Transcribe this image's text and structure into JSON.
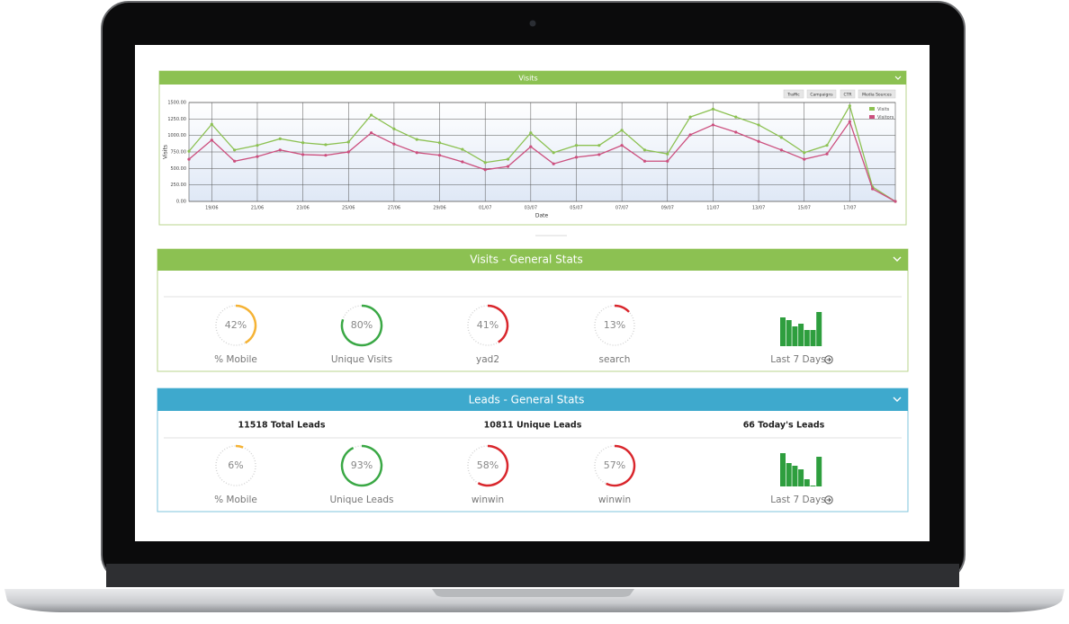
{
  "chart_data": {
    "type": "line",
    "title": "Visits",
    "x_label": "Date",
    "y_label": "Visits",
    "categories": [
      null,
      "19/06",
      null,
      "21/06",
      null,
      "23/06",
      null,
      "25/06",
      null,
      "27/06",
      null,
      "29/06",
      null,
      "01/07",
      null,
      "03/07",
      null,
      "05/07",
      null,
      "07/07",
      null,
      "09/07",
      null,
      "11/07",
      null,
      "13/07",
      null,
      "15/07",
      null,
      "17/07",
      null,
      null
    ],
    "series": [
      {
        "name": "Visits",
        "color": "#8cc152",
        "values": [
          760,
          1170,
          780,
          850,
          950,
          890,
          860,
          900,
          1310,
          1100,
          940,
          890,
          790,
          590,
          640,
          1040,
          740,
          850,
          850,
          1080,
          780,
          720,
          1280,
          1400,
          1280,
          1160,
          970,
          740,
          850,
          1450,
          220,
          0
        ]
      },
      {
        "name": "Visitors",
        "color": "#cc4f7e",
        "values": [
          640,
          930,
          610,
          680,
          780,
          710,
          700,
          750,
          1040,
          870,
          740,
          700,
          600,
          480,
          530,
          830,
          570,
          670,
          710,
          850,
          610,
          610,
          1010,
          1160,
          1050,
          910,
          780,
          640,
          720,
          1210,
          190,
          0
        ]
      }
    ],
    "ylim": [
      0,
      1500
    ],
    "yticks": [
      {
        "value": 0,
        "label": "0.00"
      },
      {
        "value": 250,
        "label": "250.00"
      },
      {
        "value": 500,
        "label": "500.00"
      },
      {
        "value": 750,
        "label": "750.00"
      },
      {
        "value": 1000,
        "label": "1000.00"
      },
      {
        "value": 1250,
        "label": "1250.00"
      },
      {
        "value": 1500,
        "label": "1500.00"
      }
    ],
    "grid": true,
    "legend": "upper right"
  },
  "toolbar": [
    "Traffic",
    "Campaigns",
    "CTR",
    "Media Sources"
  ],
  "visits_stats": {
    "title": "Visits - General Stats",
    "gauges": [
      {
        "value": 42,
        "value_label": "42%",
        "label": "% Mobile",
        "color": "#f5b335"
      },
      {
        "value": 80,
        "value_label": "80%",
        "label": "Unique Visits",
        "color": "#3aa845"
      },
      {
        "value": 41,
        "value_label": "41%",
        "label": "yad2",
        "color": "#d9262c"
      },
      {
        "value": 13,
        "value_label": "13%",
        "label": "search",
        "color": "#d9262c"
      }
    ],
    "last7": {
      "label": "Last 7 Days",
      "color": "#2e9e3e",
      "values": [
        32,
        29,
        22,
        25,
        18,
        18,
        38
      ]
    }
  },
  "leads_stats": {
    "title": "Leads - General Stats",
    "totals": [
      "11518 Total Leads",
      "10811 Unique Leads",
      "66 Today's Leads"
    ],
    "gauges": [
      {
        "value": 6,
        "value_label": "6%",
        "label": "% Mobile",
        "color": "#f5b335"
      },
      {
        "value": 93,
        "value_label": "93%",
        "label": "Unique Leads",
        "color": "#3aa845"
      },
      {
        "value": 58,
        "value_label": "58%",
        "label": "winwin",
        "color": "#d9262c"
      },
      {
        "value": 57,
        "value_label": "57%",
        "label": "winwin",
        "color": "#d9262c"
      }
    ],
    "last7": {
      "label": "Last 7 Days",
      "color": "#2e9e3e",
      "values": [
        37,
        26,
        23,
        19,
        8,
        1,
        33
      ]
    }
  }
}
